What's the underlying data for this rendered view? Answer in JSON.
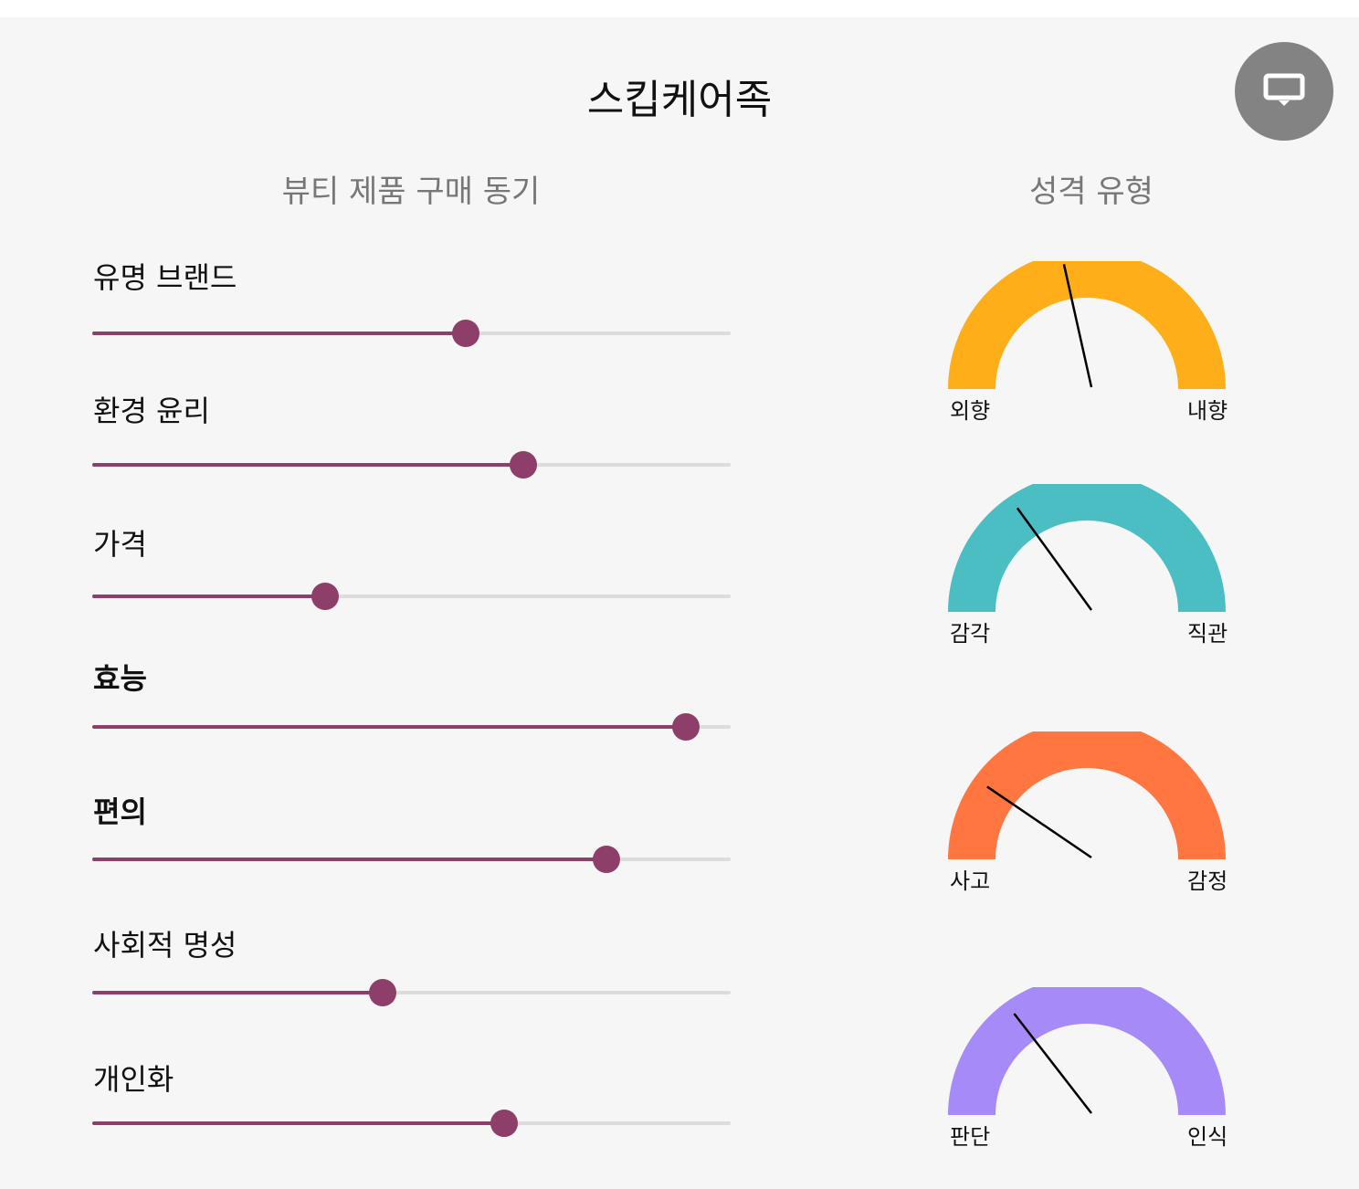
{
  "header": {
    "title": "스킵케어족",
    "screen_button_icon": "monitor-icon"
  },
  "motives": {
    "title": "뷰티 제품 구매 동기",
    "items": [
      {
        "label": "유명 브랜드",
        "value": 0.585,
        "bold": false
      },
      {
        "label": "환경 윤리",
        "value": 0.675,
        "bold": false
      },
      {
        "label": "가격",
        "value": 0.365,
        "bold": false
      },
      {
        "label": "효능",
        "value": 0.93,
        "bold": true
      },
      {
        "label": "편의",
        "value": 0.805,
        "bold": true
      },
      {
        "label": "사회적 명성",
        "value": 0.455,
        "bold": false
      },
      {
        "label": "개인화",
        "value": 0.645,
        "bold": false
      }
    ]
  },
  "personality": {
    "title": "성격 유형",
    "gauges": [
      {
        "left_label": "외향",
        "right_label": "내향",
        "color": "#fdae19",
        "value": 0.43
      },
      {
        "left_label": "감각",
        "right_label": "직관",
        "color": "#4bbec3",
        "value": 0.3
      },
      {
        "left_label": "사고",
        "right_label": "감정",
        "color": "#ff7641",
        "value": 0.19
      },
      {
        "left_label": "판단",
        "right_label": "인식",
        "color": "#a68bf8",
        "value": 0.29
      }
    ]
  },
  "colors": {
    "slider_accent": "#8e3f69",
    "slider_track": "#dcdcdc",
    "button_bg": "#838383"
  }
}
